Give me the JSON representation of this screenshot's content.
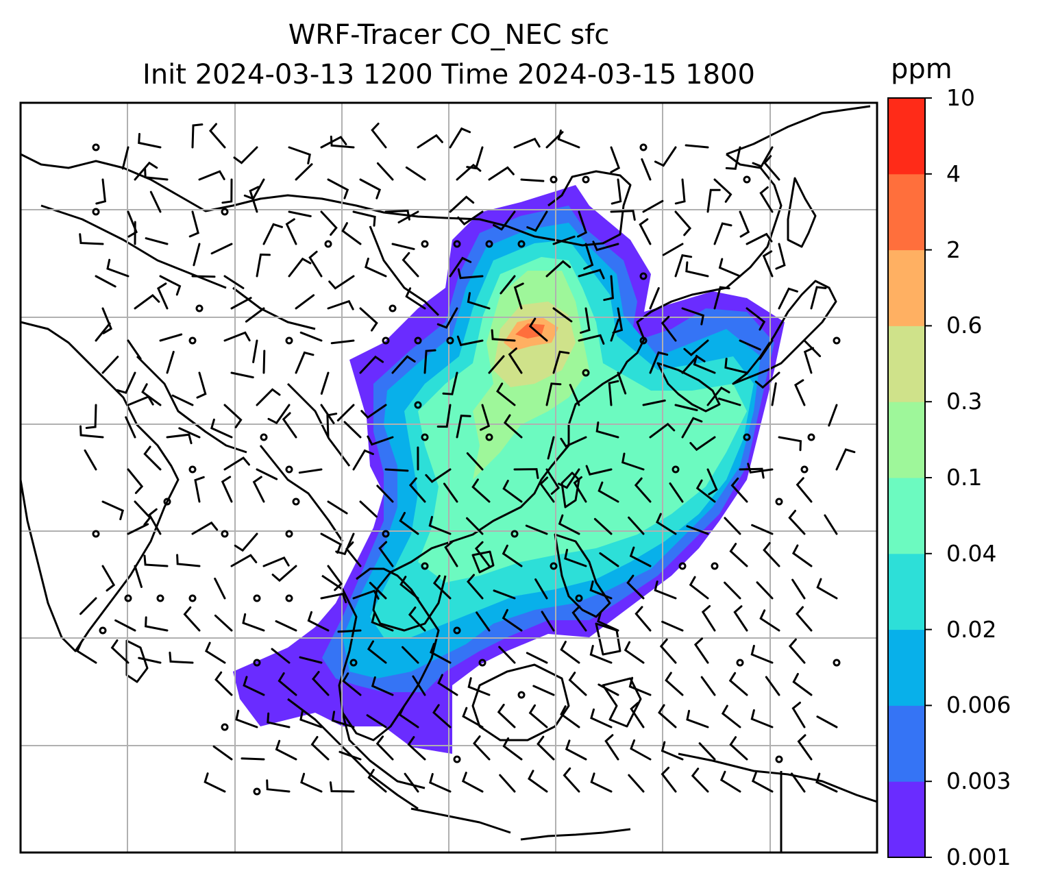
{
  "title": {
    "line1": "WRF-Tracer CO_NEC sfc",
    "line2": "Init 2024-03-13 1200 Time 2024-03-15 1800"
  },
  "colorbar": {
    "unit": "ppm",
    "levels": [
      "0.001",
      "0.003",
      "0.006",
      "0.02",
      "0.04",
      "0.1",
      "0.3",
      "0.6",
      "2",
      "4",
      "10"
    ],
    "colors": [
      "#6a2cff",
      "#3574f5",
      "#08b0ea",
      "#2ddfd8",
      "#6cfac0",
      "#9ef79a",
      "#cfe28a",
      "#ffb062",
      "#ff6f3c",
      "#ff2b18"
    ]
  },
  "map": {
    "background": "#ffffff",
    "gridline_color": "#b0b0b0",
    "coastline_color": "#000000",
    "wind_barb_color": "#000000"
  }
}
